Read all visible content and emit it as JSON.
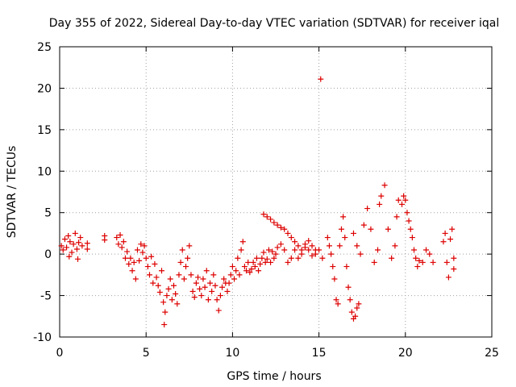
{
  "chart_data": {
    "type": "scatter",
    "title": "Day 355 of 2022, Sidereal Day-to-day VTEC variation (SDTVAR) for receiver iqal",
    "xlabel": "GPS time / hours",
    "ylabel": "SDTVAR / TECUs",
    "xlim": [
      0,
      25
    ],
    "ylim": [
      -10,
      25
    ],
    "xticks": [
      0,
      5,
      10,
      15,
      20,
      25
    ],
    "yticks": [
      -10,
      -5,
      0,
      5,
      10,
      15,
      20,
      25
    ],
    "grid": true,
    "marker": "+",
    "color": "#dd0000",
    "series": [
      {
        "name": "SDTVAR",
        "points": [
          [
            0.1,
            1.0
          ],
          [
            0.2,
            0.5
          ],
          [
            0.3,
            1.8
          ],
          [
            0.4,
            0.8
          ],
          [
            0.5,
            2.2
          ],
          [
            0.55,
            -0.3
          ],
          [
            0.6,
            1.5
          ],
          [
            0.7,
            0.2
          ],
          [
            0.8,
            1.2
          ],
          [
            0.9,
            2.5
          ],
          [
            1.0,
            0.6
          ],
          [
            1.05,
            -0.6
          ],
          [
            1.1,
            1.4
          ],
          [
            1.2,
            2.0
          ],
          [
            1.3,
            1.0
          ],
          [
            1.6,
            1.3
          ],
          [
            1.6,
            0.6
          ],
          [
            2.6,
            2.2
          ],
          [
            2.6,
            1.7
          ],
          [
            3.3,
            2.0
          ],
          [
            3.4,
            1.2
          ],
          [
            3.5,
            2.3
          ],
          [
            3.6,
            0.8
          ],
          [
            3.7,
            1.5
          ],
          [
            3.8,
            -0.5
          ],
          [
            3.9,
            0.3
          ],
          [
            4.0,
            -1.2
          ],
          [
            4.1,
            -0.5
          ],
          [
            4.2,
            -2.0
          ],
          [
            4.3,
            -1.0
          ],
          [
            4.4,
            -3.0
          ],
          [
            4.5,
            0.5
          ],
          [
            4.6,
            -0.8
          ],
          [
            4.7,
            1.2
          ],
          [
            4.8,
            0.2
          ],
          [
            4.9,
            1.0
          ],
          [
            5.0,
            -0.5
          ],
          [
            5.1,
            -1.5
          ],
          [
            5.2,
            -2.5
          ],
          [
            5.3,
            -0.3
          ],
          [
            5.4,
            -3.5
          ],
          [
            5.5,
            -1.2
          ],
          [
            5.6,
            -2.8
          ],
          [
            5.7,
            -3.8
          ],
          [
            5.8,
            -4.6
          ],
          [
            5.9,
            -2.0
          ],
          [
            6.0,
            -5.8
          ],
          [
            6.05,
            -8.5
          ],
          [
            6.1,
            -7.0
          ],
          [
            6.2,
            -5.0
          ],
          [
            6.3,
            -4.2
          ],
          [
            6.4,
            -3.0
          ],
          [
            6.5,
            -5.5
          ],
          [
            6.6,
            -3.8
          ],
          [
            6.7,
            -4.8
          ],
          [
            6.8,
            -6.0
          ],
          [
            6.9,
            -2.5
          ],
          [
            7.0,
            -1.0
          ],
          [
            7.1,
            0.5
          ],
          [
            7.2,
            -3.0
          ],
          [
            7.3,
            -1.5
          ],
          [
            7.4,
            -0.5
          ],
          [
            7.5,
            1.0
          ],
          [
            7.6,
            -2.5
          ],
          [
            7.7,
            -4.5
          ],
          [
            7.8,
            -5.2
          ],
          [
            7.9,
            -3.5
          ],
          [
            8.0,
            -2.8
          ],
          [
            8.1,
            -4.2
          ],
          [
            8.2,
            -5.0
          ],
          [
            8.3,
            -3.0
          ],
          [
            8.4,
            -4.0
          ],
          [
            8.5,
            -2.0
          ],
          [
            8.6,
            -5.5
          ],
          [
            8.7,
            -3.5
          ],
          [
            8.8,
            -4.5
          ],
          [
            8.9,
            -2.5
          ],
          [
            9.0,
            -3.8
          ],
          [
            9.1,
            -5.5
          ],
          [
            9.2,
            -6.8
          ],
          [
            9.3,
            -5.0
          ],
          [
            9.4,
            -4.0
          ],
          [
            9.5,
            -3.0
          ],
          [
            9.6,
            -3.5
          ],
          [
            9.7,
            -4.5
          ],
          [
            9.8,
            -3.5
          ],
          [
            9.9,
            -2.5
          ],
          [
            10.0,
            -1.5
          ],
          [
            10.1,
            -3.0
          ],
          [
            10.2,
            -2.0
          ],
          [
            10.3,
            -0.5
          ],
          [
            10.4,
            -2.5
          ],
          [
            10.5,
            0.5
          ],
          [
            10.6,
            1.5
          ],
          [
            10.7,
            -1.5
          ],
          [
            10.8,
            -2.0
          ],
          [
            10.9,
            -1.0
          ],
          [
            11.0,
            -2.2
          ],
          [
            11.1,
            -1.8
          ],
          [
            11.2,
            -1.0
          ],
          [
            11.3,
            -1.5
          ],
          [
            11.4,
            -0.5
          ],
          [
            11.5,
            -2.0
          ],
          [
            11.6,
            -1.2
          ],
          [
            11.7,
            -0.5
          ],
          [
            11.8,
            0.2
          ],
          [
            11.9,
            -1.0
          ],
          [
            12.0,
            -0.6
          ],
          [
            12.1,
            0.5
          ],
          [
            12.2,
            -1.0
          ],
          [
            12.3,
            0.3
          ],
          [
            12.4,
            -0.5
          ],
          [
            12.5,
            0.0
          ],
          [
            12.6,
            0.8
          ],
          [
            12.8,
            1.2
          ],
          [
            13.0,
            0.5
          ],
          [
            13.2,
            -1.0
          ],
          [
            13.4,
            -0.5
          ],
          [
            13.6,
            0.5
          ],
          [
            13.8,
            -0.5
          ],
          [
            14.0,
            0.0
          ],
          [
            14.2,
            0.8
          ],
          [
            14.4,
            0.5
          ],
          [
            14.6,
            -0.2
          ],
          [
            14.8,
            0.0
          ],
          [
            15.0,
            0.5
          ],
          [
            15.2,
            -0.5
          ],
          [
            11.8,
            4.8
          ],
          [
            12.0,
            4.5
          ],
          [
            12.2,
            4.2
          ],
          [
            12.4,
            3.8
          ],
          [
            12.6,
            3.5
          ],
          [
            12.8,
            3.2
          ],
          [
            13.0,
            3.0
          ],
          [
            13.2,
            2.5
          ],
          [
            13.4,
            2.0
          ],
          [
            13.6,
            1.5
          ],
          [
            13.8,
            1.0
          ],
          [
            14.0,
            0.5
          ],
          [
            14.2,
            1.2
          ],
          [
            14.4,
            1.6
          ],
          [
            14.6,
            1.0
          ],
          [
            14.8,
            0.5
          ],
          [
            15.1,
            21.1
          ],
          [
            15.5,
            2.0
          ],
          [
            15.6,
            1.0
          ],
          [
            15.7,
            0.0
          ],
          [
            15.8,
            -1.5
          ],
          [
            15.9,
            -3.0
          ],
          [
            16.0,
            -5.5
          ],
          [
            16.1,
            -6.0
          ],
          [
            16.2,
            1.0
          ],
          [
            16.3,
            3.0
          ],
          [
            16.4,
            4.5
          ],
          [
            16.5,
            2.0
          ],
          [
            16.6,
            -1.5
          ],
          [
            16.7,
            -4.0
          ],
          [
            16.8,
            -5.5
          ],
          [
            16.9,
            -7.0
          ],
          [
            17.0,
            -7.8
          ],
          [
            17.1,
            -7.5
          ],
          [
            17.2,
            -6.5
          ],
          [
            17.3,
            -6.0
          ],
          [
            17.0,
            2.5
          ],
          [
            17.2,
            1.0
          ],
          [
            17.4,
            0.0
          ],
          [
            17.6,
            3.5
          ],
          [
            17.8,
            5.5
          ],
          [
            18.0,
            3.0
          ],
          [
            18.2,
            -1.0
          ],
          [
            18.4,
            0.5
          ],
          [
            18.5,
            6.0
          ],
          [
            18.6,
            7.0
          ],
          [
            18.8,
            8.3
          ],
          [
            19.0,
            3.0
          ],
          [
            19.2,
            -0.5
          ],
          [
            19.4,
            1.0
          ],
          [
            19.5,
            4.5
          ],
          [
            19.6,
            6.5
          ],
          [
            19.8,
            6.0
          ],
          [
            19.9,
            7.0
          ],
          [
            20.0,
            6.5
          ],
          [
            20.1,
            5.0
          ],
          [
            20.2,
            4.0
          ],
          [
            20.3,
            3.0
          ],
          [
            20.4,
            2.0
          ],
          [
            20.5,
            0.5
          ],
          [
            20.6,
            -0.5
          ],
          [
            20.7,
            -1.5
          ],
          [
            20.8,
            -0.8
          ],
          [
            21.0,
            -1.0
          ],
          [
            21.2,
            0.5
          ],
          [
            21.4,
            0.0
          ],
          [
            21.6,
            -1.0
          ],
          [
            22.2,
            1.5
          ],
          [
            22.3,
            2.5
          ],
          [
            22.4,
            -1.0
          ],
          [
            22.5,
            -2.8
          ],
          [
            22.6,
            1.8
          ],
          [
            22.7,
            3.0
          ],
          [
            22.8,
            -0.5
          ],
          [
            22.8,
            -1.8
          ]
        ]
      }
    ]
  }
}
